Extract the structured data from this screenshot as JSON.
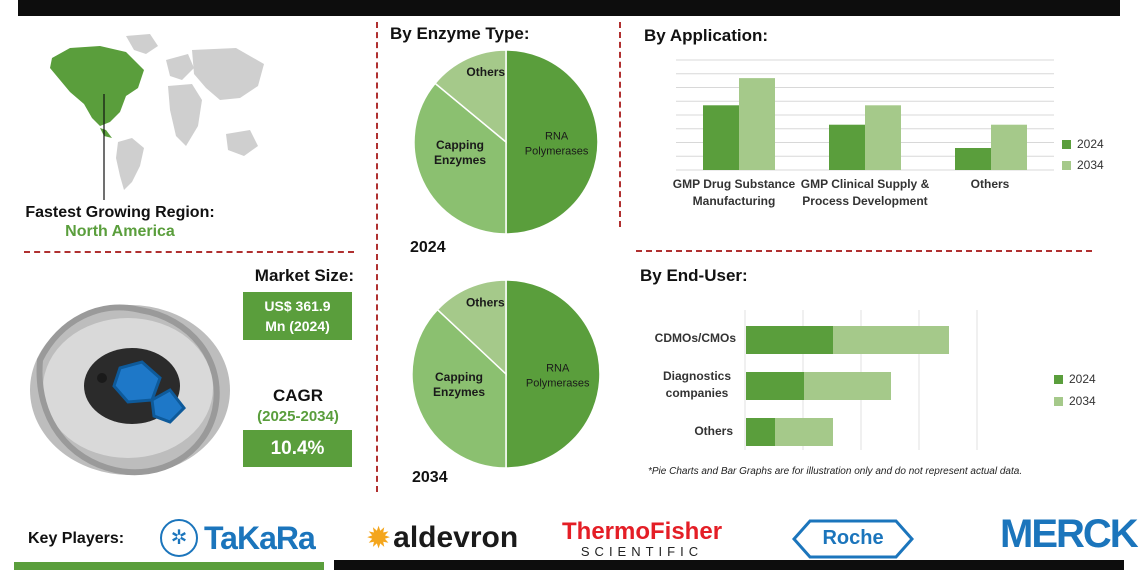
{
  "colors": {
    "dark_green": "#5a9e3c",
    "light_green": "#a5c98a",
    "mid_green": "#8bc070",
    "accent_red": "#b03030"
  },
  "region": {
    "caption": "Fastest Growing Region:",
    "value": "North America"
  },
  "market": {
    "label": "Market Size:",
    "value_line1": "US$ 361.9",
    "value_line2": "Mn (2024)"
  },
  "cagr": {
    "label": "CAGR",
    "period": "(2025-2034)",
    "value": "10.4%"
  },
  "enzyme": {
    "heading": "By Enzyme Type:",
    "year_2024": "2024",
    "year_2034": "2034"
  },
  "application": {
    "heading": "By Application:"
  },
  "enduser": {
    "heading": "By End-User:",
    "footnote": "*Pie Charts and Bar Graphs are for illustration only and do not represent actual data."
  },
  "key_players": {
    "label": "Key Players:",
    "logos": [
      "TaKaRa",
      "aldevron",
      "ThermoFisher",
      "SCIENTIFIC",
      "Roche",
      "MERCK"
    ]
  },
  "chart_data": [
    {
      "type": "pie",
      "title": "By Enzyme Type:",
      "year": "2024",
      "labels": [
        "RNA Polymerases",
        "Capping Enzymes",
        "Others"
      ],
      "values": [
        50,
        36,
        14
      ]
    },
    {
      "type": "pie",
      "title": "By Enzyme Type:",
      "year": "2034",
      "labels": [
        "RNA Polymerases",
        "Capping Enzymes",
        "Others"
      ],
      "values": [
        50,
        37,
        13
      ]
    },
    {
      "type": "bar",
      "title": "By Application:",
      "categories": [
        "GMP Drug Substance Manufacturing",
        "GMP Clinical Supply & Process Development",
        "Others"
      ],
      "series": [
        {
          "name": "2024",
          "values": [
            5,
            3.5,
            1.7
          ]
        },
        {
          "name": "2034",
          "values": [
            7.1,
            5,
            3.5
          ]
        }
      ],
      "ylim": [
        0,
        8.5
      ],
      "grid": true,
      "legend": "right"
    },
    {
      "type": "bar",
      "orientation": "horizontal",
      "stacked": true,
      "title": "By End-User:",
      "categories": [
        "CDMOs/CMOs",
        "Diagnostics companies",
        "Others"
      ],
      "series": [
        {
          "name": "2024",
          "values": [
            1.5,
            1,
            0.5
          ]
        },
        {
          "name": "2034",
          "values": [
            2,
            1.5,
            1
          ]
        }
      ],
      "xlim": [
        0,
        4
      ],
      "grid": true,
      "legend": "right"
    }
  ]
}
